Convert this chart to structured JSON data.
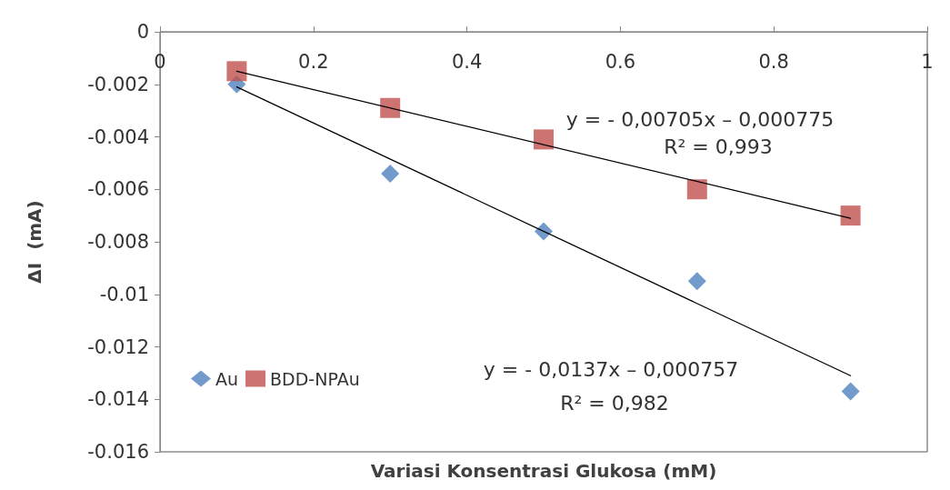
{
  "chart_data": {
    "type": "scatter",
    "xlabel": "Variasi Konsentrasi Glukosa (mM)",
    "ylabel": "ΔI  (mA)",
    "xlim": [
      0,
      1
    ],
    "xticks": [
      0,
      0.2,
      0.4,
      0.6,
      0.8,
      1
    ],
    "ylim": [
      -0.016,
      0
    ],
    "yticks": [
      -0.016,
      -0.014,
      -0.012,
      -0.01,
      -0.008,
      -0.006,
      -0.004,
      -0.002,
      0
    ],
    "grid": false,
    "legend": "bottom left",
    "series": [
      {
        "name": "Au",
        "color": "#4f81bd",
        "marker": "diamond",
        "x": [
          0.1,
          0.3,
          0.5,
          0.7,
          0.9
        ],
        "values": [
          -0.002,
          -0.0054,
          -0.0076,
          -0.0095,
          -0.0137
        ]
      },
      {
        "name": "BDD-NPAu",
        "color": "#c0504d",
        "marker": "square",
        "x": [
          0.1,
          0.3,
          0.5,
          0.7,
          0.9
        ],
        "values": [
          -0.0015,
          -0.0029,
          -0.0041,
          -0.006,
          -0.007
        ]
      },
      {
        "type": "line",
        "color": "#000000",
        "marker": "none",
        "x": [
          0.1,
          0.9
        ],
        "values": [
          -0.0021,
          -0.0131
        ]
      },
      {
        "type": "line",
        "color": "#000000",
        "marker": "none",
        "x": [
          0.1,
          0.9
        ],
        "values": [
          -0.0015,
          -0.0071
        ]
      }
    ],
    "annotations": [
      "y = - 0,00705x – 0,000775",
      "R² = 0,993",
      "y = - 0,0137x – 0,000757",
      "R² = 0,982"
    ]
  }
}
